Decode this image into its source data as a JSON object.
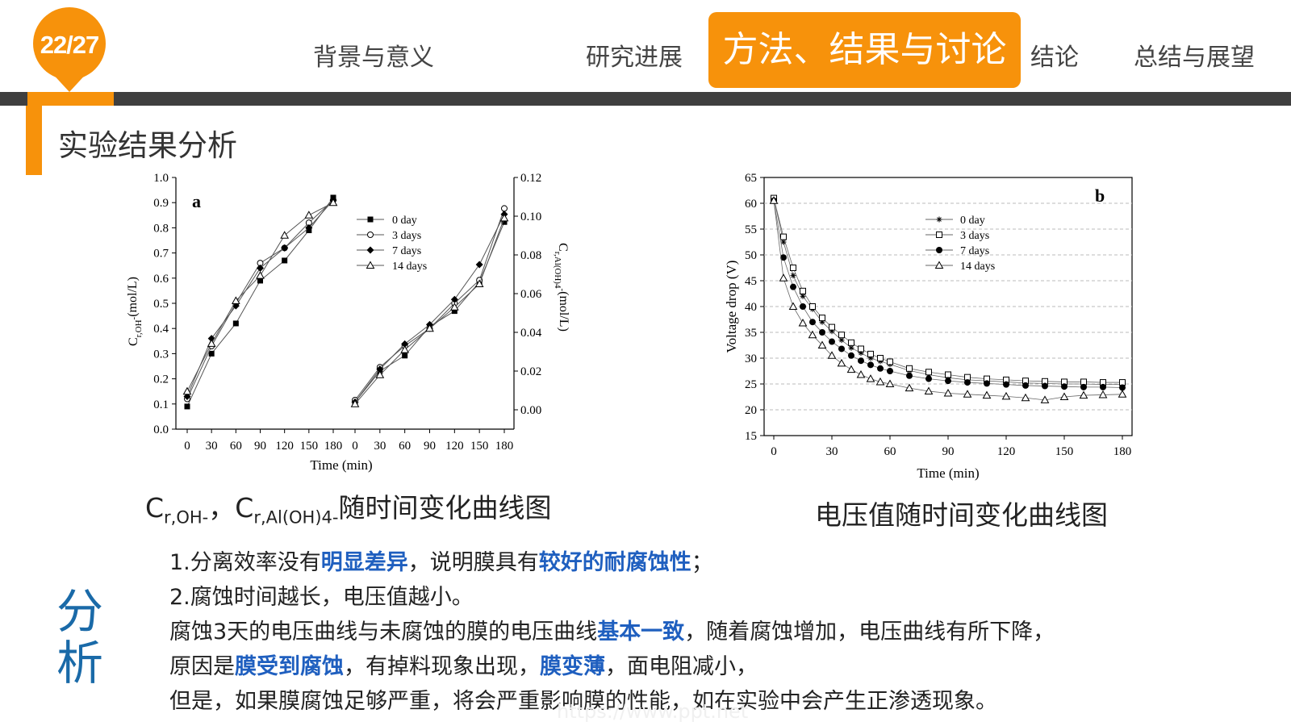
{
  "slide": {
    "page_badge": "22/27",
    "section_title": "实验结果分析"
  },
  "nav": {
    "items": [
      "背景与意义",
      "研究进展",
      "方法、结果与讨论",
      "结论",
      "总结与展望"
    ],
    "active_index": 2
  },
  "colors": {
    "accent": "#f7920b",
    "bar": "#3f3f3f",
    "highlight": "#1f5fbf",
    "analysis_label": "#1a6aa8"
  },
  "captions": {
    "left_c1": "C",
    "left_sub1": "r,OH-",
    "left_sep": "，",
    "left_c2": "C",
    "left_sub2": "r,Al(OH)4-",
    "left_rest": "随时间变化曲线图",
    "right": "电压值随时间变化曲线图"
  },
  "analysis": {
    "label": "分析",
    "lines": [
      [
        {
          "t": "1.分离效率没有"
        },
        {
          "t": "明显差异",
          "hl": true
        },
        {
          "t": "，说明膜具有"
        },
        {
          "t": "较好的耐腐蚀性",
          "hl": true
        },
        {
          "t": "；"
        }
      ],
      [
        {
          "t": "2.腐蚀时间越长，电压值越小。"
        }
      ],
      [
        {
          "t": "腐蚀3天的电压曲线与未腐蚀的膜的电压曲线"
        },
        {
          "t": "基本一致",
          "hl": true
        },
        {
          "t": "，随着腐蚀增加，电压曲线有所下降，"
        }
      ],
      [
        {
          "t": "原因是"
        },
        {
          "t": "膜受到腐蚀",
          "hl": true
        },
        {
          "t": "，有掉料现象出现，"
        },
        {
          "t": "膜变薄",
          "hl": true
        },
        {
          "t": "，面电阻减小，"
        }
      ],
      [
        {
          "t": "但是，如果膜腐蚀足够严重，将会严重影响膜的性能，如在实验中会产生正渗透现象。"
        }
      ]
    ]
  },
  "watermark": "https://www.ppt.net",
  "chart_data": [
    {
      "type": "line",
      "panel_label": "a",
      "xlabel": "Time (min)",
      "ylabel_left": {
        "main": "C",
        "sub": "r,OH",
        "sup": "-",
        "unit": "(mol/L)"
      },
      "ylabel_right": {
        "main": "C",
        "sub": "r,Al(OH)4",
        "sup": "-",
        "unit": "(mol/L)"
      },
      "left_panel": {
        "x": [
          0,
          30,
          60,
          90,
          120,
          150,
          180
        ],
        "xticks": [
          "0",
          "30",
          "60",
          "90",
          "120",
          "150",
          "180"
        ],
        "ylim": [
          0.0,
          1.0
        ],
        "yticks": [
          "0.0",
          "0.1",
          "0.2",
          "0.3",
          "0.4",
          "0.5",
          "0.6",
          "0.7",
          "0.8",
          "0.9",
          "1.0"
        ],
        "series": [
          {
            "name": "0 day",
            "marker": "square",
            "values": [
              0.09,
              0.3,
              0.42,
              0.59,
              0.67,
              0.79,
              0.92
            ]
          },
          {
            "name": "3 days",
            "marker": "circle-open",
            "values": [
              0.12,
              0.33,
              0.5,
              0.66,
              0.72,
              0.82,
              0.91
            ]
          },
          {
            "name": "7 days",
            "marker": "diamond",
            "values": [
              0.13,
              0.36,
              0.49,
              0.64,
              0.72,
              0.8,
              0.91
            ]
          },
          {
            "name": "14 days",
            "marker": "triangle-open",
            "values": [
              0.15,
              0.34,
              0.51,
              0.61,
              0.77,
              0.85,
              0.9
            ]
          }
        ]
      },
      "right_panel": {
        "x": [
          0,
          30,
          60,
          90,
          120,
          150,
          180
        ],
        "xticks": [
          "0",
          "30",
          "60",
          "90",
          "120",
          "150",
          "180"
        ],
        "ylim": [
          -0.01,
          0.12
        ],
        "yticks": [
          "0.00",
          "0.02",
          "0.04",
          "0.06",
          "0.08",
          "0.10",
          "0.12"
        ],
        "series": [
          {
            "name": "0 day",
            "marker": "square",
            "values": [
              0.004,
              0.02,
              0.028,
              0.043,
              0.051,
              0.066,
              0.097
            ]
          },
          {
            "name": "3 days",
            "marker": "circle-open",
            "values": [
              0.005,
              0.022,
              0.033,
              0.042,
              0.055,
              0.067,
              0.104
            ]
          },
          {
            "name": "7 days",
            "marker": "diamond",
            "values": [
              0.004,
              0.021,
              0.034,
              0.044,
              0.057,
              0.075,
              0.101
            ]
          },
          {
            "name": "14 days",
            "marker": "triangle-open",
            "values": [
              0.003,
              0.018,
              0.031,
              0.042,
              0.053,
              0.065,
              0.099
            ]
          }
        ]
      },
      "legend": "upper-left-center"
    },
    {
      "type": "line",
      "panel_label": "b",
      "xlabel": "Time (min)",
      "ylabel": "Voltage drop (V)",
      "xlim": [
        -5,
        185
      ],
      "ylim": [
        15,
        65
      ],
      "xticks": [
        "0",
        "30",
        "60",
        "90",
        "120",
        "150",
        "180"
      ],
      "yticks": [
        "15",
        "20",
        "25",
        "30",
        "35",
        "40",
        "45",
        "50",
        "55",
        "60",
        "65"
      ],
      "grid": "horizontal-dashed",
      "legend": "top-center-right",
      "x": [
        0,
        5,
        10,
        15,
        20,
        25,
        30,
        35,
        40,
        45,
        50,
        55,
        60,
        70,
        80,
        90,
        100,
        110,
        120,
        130,
        140,
        150,
        160,
        170,
        180
      ],
      "series": [
        {
          "name": "0 day",
          "marker": "asterisk",
          "values": [
            61,
            52.5,
            46,
            42,
            39.5,
            37,
            35.2,
            33.5,
            32,
            31,
            30,
            29.4,
            28.8,
            27.6,
            26.8,
            26.2,
            25.8,
            25.6,
            25.4,
            25.2,
            25.1,
            25.0,
            25.0,
            24.9,
            24.9
          ]
        },
        {
          "name": "3 days",
          "marker": "square-open",
          "values": [
            61,
            53.5,
            47.5,
            43,
            40,
            37.8,
            36,
            34.5,
            33,
            31.8,
            30.8,
            30,
            29.3,
            28.0,
            27.3,
            26.8,
            26.3,
            26.0,
            25.8,
            25.6,
            25.5,
            25.4,
            25.4,
            25.3,
            25.3
          ]
        },
        {
          "name": "7 days",
          "marker": "circle",
          "values": [
            60.5,
            49.5,
            43.8,
            40,
            37,
            35,
            33.2,
            31.8,
            30.5,
            29.5,
            28.7,
            28,
            27.5,
            26.6,
            26.0,
            25.6,
            25.3,
            25.1,
            24.9,
            24.7,
            24.6,
            24.5,
            24.4,
            24.4,
            24.3
          ]
        },
        {
          "name": "14 days",
          "marker": "triangle-open",
          "values": [
            60.5,
            45.5,
            40,
            36.8,
            34.5,
            32.5,
            30.5,
            29,
            27.8,
            26.8,
            26,
            25.4,
            25,
            24.2,
            23.6,
            23.2,
            23.0,
            22.8,
            22.6,
            22.3,
            21.9,
            22.5,
            22.8,
            22.9,
            23.0
          ]
        }
      ]
    }
  ]
}
